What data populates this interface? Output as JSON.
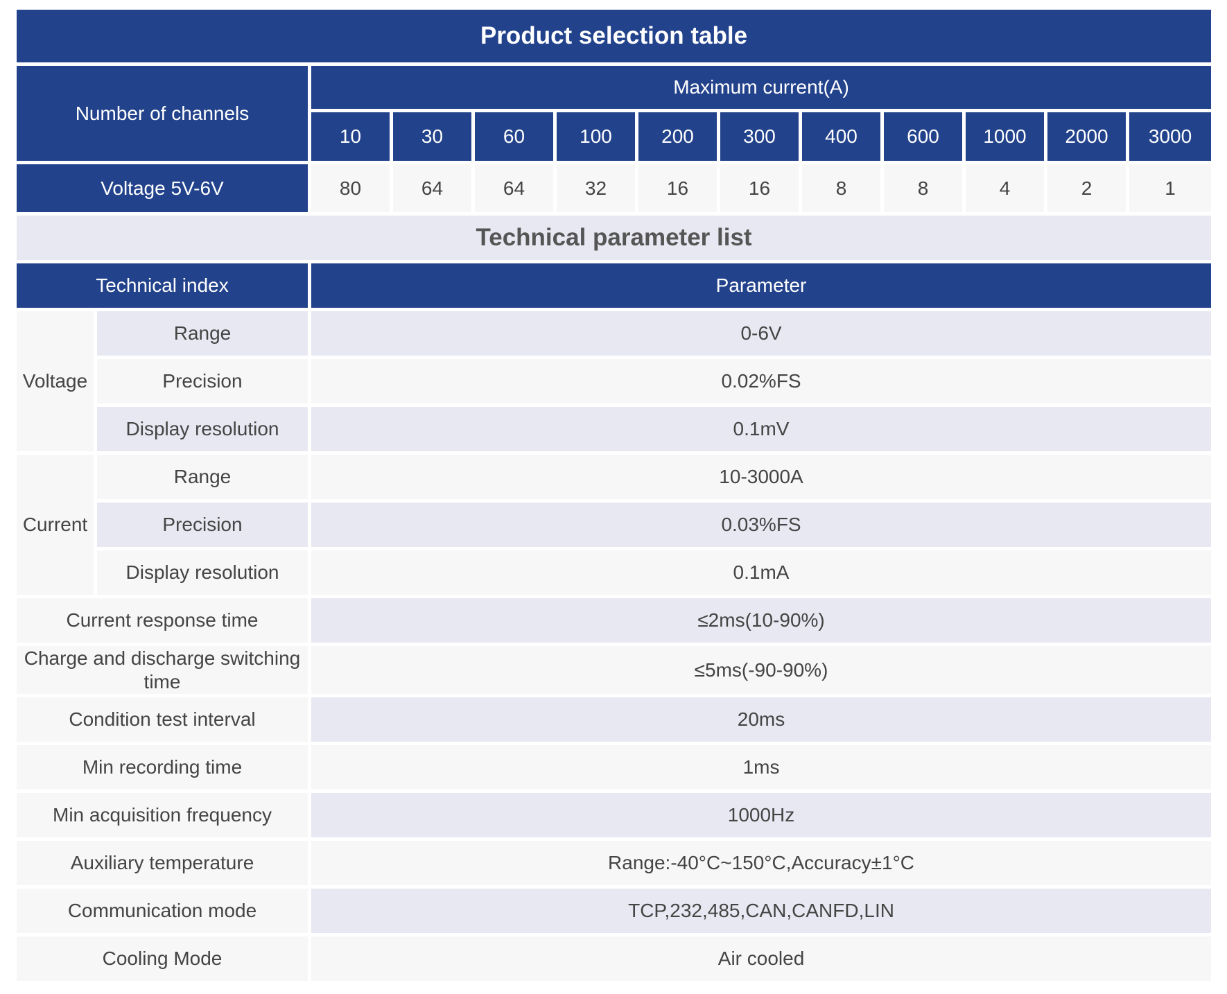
{
  "selection": {
    "title": "Product selection table",
    "channels_label": "Number of channels",
    "max_current_label": "Maximum current(A)",
    "currents": [
      "10",
      "30",
      "60",
      "100",
      "200",
      "300",
      "400",
      "600",
      "1000",
      "2000",
      "3000"
    ],
    "voltage_label": "Voltage 5V-6V",
    "channels": [
      "80",
      "64",
      "64",
      "32",
      "16",
      "16",
      "8",
      "8",
      "4",
      "2",
      "1"
    ]
  },
  "tech": {
    "title": "Technical parameter list",
    "index_label": "Technical index",
    "parameter_label": "Parameter",
    "voltage": {
      "group": "Voltage",
      "rows": [
        {
          "name": "Range",
          "value": "0-6V"
        },
        {
          "name": "Precision",
          "value": "0.02%FS"
        },
        {
          "name": "Display resolution",
          "value": "0.1mV"
        }
      ]
    },
    "current": {
      "group": "Current",
      "rows": [
        {
          "name": "Range",
          "value": "10-3000A"
        },
        {
          "name": "Precision",
          "value": "0.03%FS"
        },
        {
          "name": "Display resolution",
          "value": "0.1mA"
        }
      ]
    },
    "rows": [
      {
        "name": "Current response time",
        "value": "≤2ms(10-90%)"
      },
      {
        "name": "Charge and discharge switching time",
        "value": "≤5ms(-90-90%)"
      },
      {
        "name": "Condition test interval",
        "value": "20ms"
      },
      {
        "name": "Min recording time",
        "value": "1ms"
      },
      {
        "name": "Min acquisition frequency",
        "value": "1000Hz"
      },
      {
        "name": "Auxiliary temperature",
        "value": "Range:-40°C~150°C,Accuracy±1°C"
      },
      {
        "name": "Communication mode",
        "value": "TCP,232,485,CAN,CANFD,LIN"
      },
      {
        "name": "Cooling Mode",
        "value": "Air cooled"
      }
    ]
  }
}
